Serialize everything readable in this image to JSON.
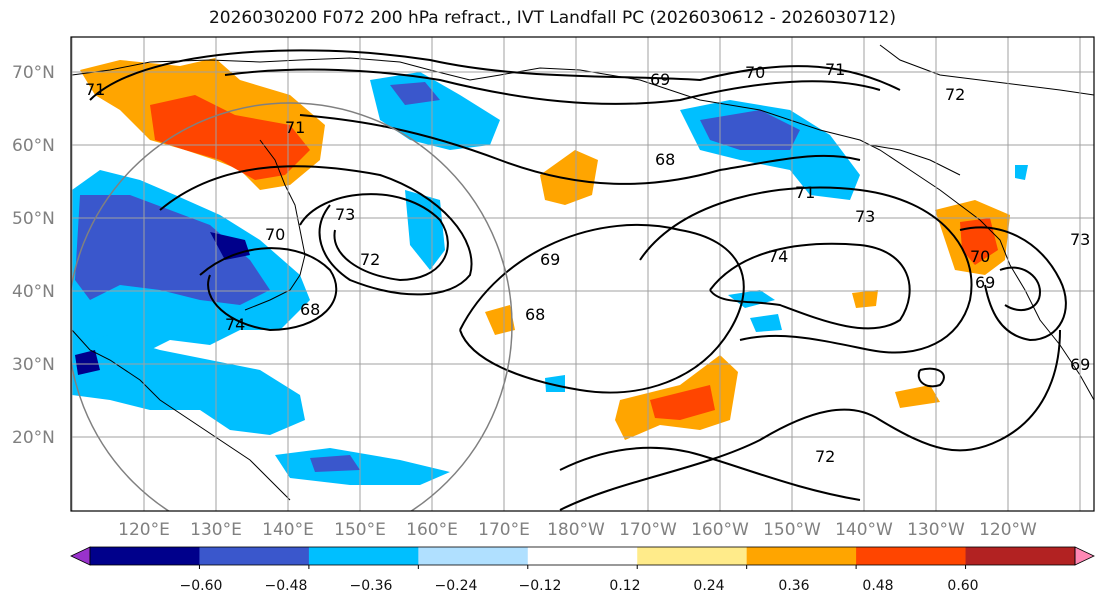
{
  "title": "2026030200 F072 200 hPa refract., IVT Landfall PC (2026030612 - 2026030712)",
  "lat_labels": [
    "70°N",
    "60°N",
    "50°N",
    "40°N",
    "30°N",
    "20°N"
  ],
  "lon_labels": [
    "120°E",
    "130°E",
    "140°E",
    "150°E",
    "160°E",
    "170°E",
    "180°W",
    "170°W",
    "160°W",
    "150°W",
    "140°W",
    "130°W",
    "120°W"
  ],
  "colorbar": {
    "colors": [
      "#9932cc",
      "#00008b",
      "#3a57cc",
      "#00bfff",
      "#b0e0ff",
      "#ffffff",
      "#ffeb8a",
      "#ffa500",
      "#ff4500",
      "#b22222",
      "#ff88b4"
    ],
    "tick_labels": [
      "−0.60",
      "−0.48",
      "−0.36",
      "−0.24",
      "−0.12",
      "0.12",
      "0.24",
      "0.36",
      "0.48",
      "0.60"
    ]
  },
  "contour_labels": [
    "69",
    "70",
    "71",
    "72",
    "73",
    "74",
    "71",
    "68",
    "69",
    "68",
    "71",
    "73",
    "74",
    "72",
    "72",
    "73",
    "70",
    "69",
    "68",
    "71",
    "70",
    "69"
  ]
}
